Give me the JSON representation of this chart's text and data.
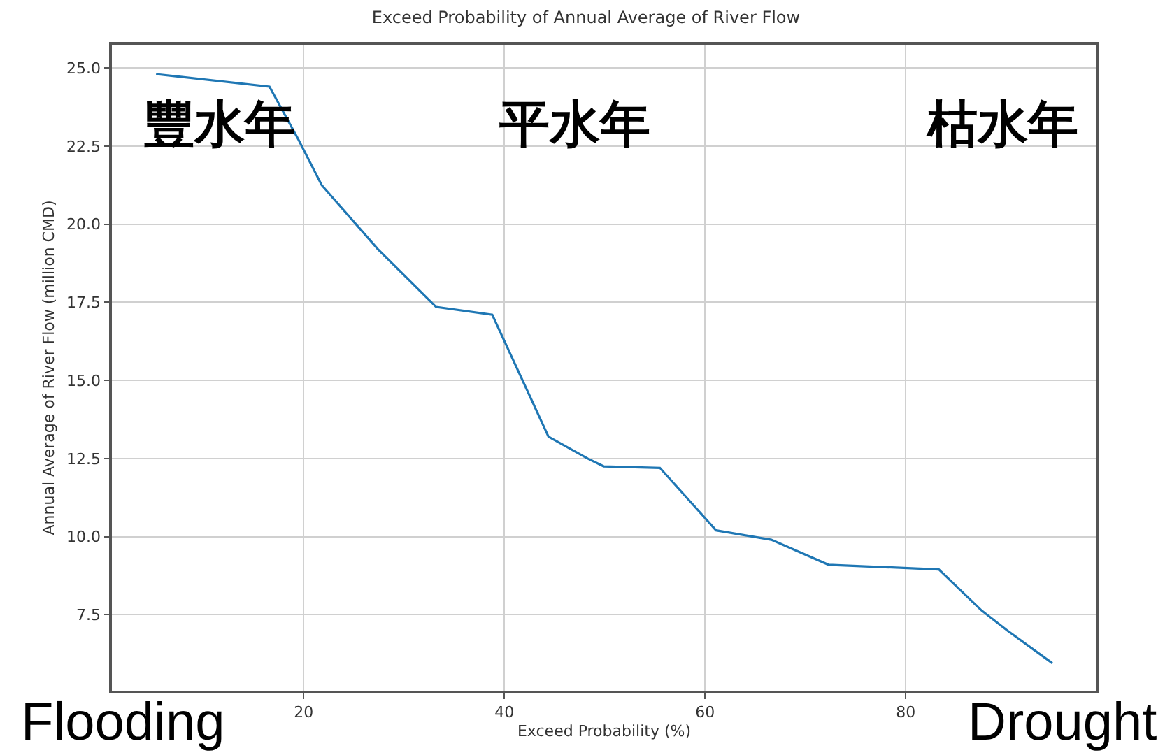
{
  "chart_data": {
    "type": "line",
    "title": "Exceed Probability of Annual Average of River Flow",
    "xlabel": "Exceed Probability (%)",
    "ylabel": "Annual Average of River Flow (million CMD)",
    "x": [
      5.3,
      16.6,
      19.5,
      21.8,
      27.4,
      33.2,
      38.8,
      44.4,
      48.3,
      49.9,
      55.5,
      61.1,
      66.6,
      72.3,
      83.3,
      87.5,
      90.1,
      94.6
    ],
    "series": [
      {
        "color": "#1f77b4",
        "values": [
          24.8,
          24.4,
          22.7,
          21.25,
          19.2,
          17.35,
          17.1,
          13.2,
          12.5,
          12.25,
          12.2,
          10.2,
          9.9,
          9.1,
          8.95,
          7.65,
          7.0,
          5.95
        ]
      }
    ],
    "xlim": [
      0.9,
      99.0
    ],
    "xticks": [
      20,
      40,
      60,
      80
    ],
    "ylim": [
      5.07,
      25.74
    ],
    "yticks": [
      {
        "value": 7.5,
        "label": "7.5"
      },
      {
        "value": 10,
        "label": "10.0"
      },
      {
        "value": 12.5,
        "label": "12.5"
      },
      {
        "value": 15,
        "label": "15.0"
      },
      {
        "value": 17.5,
        "label": "17.5"
      },
      {
        "value": 20,
        "label": "20.0"
      },
      {
        "value": 22.5,
        "label": "22.5"
      },
      {
        "value": 25,
        "label": "25.0"
      }
    ],
    "grid": true,
    "marker": "none",
    "line_style": "solid",
    "annotations": [
      "豐水年",
      "平水年",
      "枯水年",
      "Flooding",
      "Drought"
    ]
  }
}
